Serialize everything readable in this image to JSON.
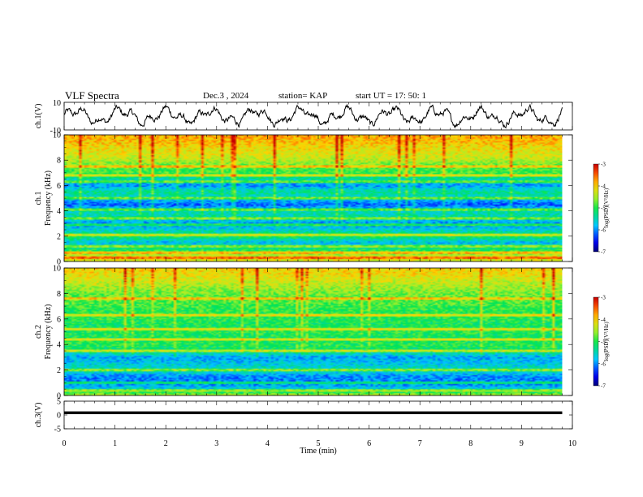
{
  "header": {
    "title": "VLF Spectra",
    "date": "Dec.3 , 2024",
    "station": "station= KAP",
    "start": "start UT =  17: 50: 1"
  },
  "chart_data": [
    {
      "type": "line",
      "panel": "ch1-waveform",
      "ylabel": "ch.1(V)",
      "ylim": [
        -10,
        10
      ],
      "yticks": [
        "10",
        "-10"
      ],
      "xlim": [
        0,
        10
      ],
      "data_end_min": 9.8,
      "description_values": "noisy voltage trace oscillating roughly between -6 and +8 V"
    },
    {
      "type": "heatmap",
      "panel": "ch1-spectrogram",
      "ylabel_top": "ch.1",
      "ylabel": "Frequency (kHz)",
      "ylim": [
        0,
        10
      ],
      "yticks": [
        "0",
        "2",
        "4",
        "6",
        "8",
        "10"
      ],
      "xlim": [
        0,
        10
      ],
      "data_end_min": 9.8,
      "zlim": [
        -7,
        -3
      ],
      "zlabel": "log(PSD)(V²/Hz)",
      "level_profile_khz": [
        [
          0,
          -4.2
        ],
        [
          0.5,
          -4.4
        ],
        [
          1.0,
          -5.2
        ],
        [
          1.5,
          -5.8
        ],
        [
          2.0,
          -5.0
        ],
        [
          2.5,
          -5.6
        ],
        [
          3.0,
          -6.0
        ],
        [
          3.5,
          -5.4
        ],
        [
          4.0,
          -5.5
        ],
        [
          4.5,
          -6.2
        ],
        [
          5.0,
          -5.6
        ],
        [
          5.5,
          -5.3
        ],
        [
          6.0,
          -6.0
        ],
        [
          6.5,
          -5.4
        ],
        [
          7.0,
          -4.9
        ],
        [
          7.5,
          -4.8
        ],
        [
          8.0,
          -4.4
        ],
        [
          8.5,
          -4.2
        ],
        [
          9.0,
          -4.1
        ],
        [
          9.5,
          -3.9
        ],
        [
          10.0,
          -3.8
        ]
      ],
      "line_freqs_khz": [
        0.3,
        0.7,
        1.2,
        2.1,
        2.9,
        3.4,
        4.1,
        5.0,
        6.3,
        6.8,
        7.5
      ]
    },
    {
      "type": "heatmap",
      "panel": "ch2-spectrogram",
      "ylabel_top": "ch.2",
      "ylabel": "Frequency (kHz)",
      "ylim": [
        0,
        10
      ],
      "yticks": [
        "0",
        "2",
        "4",
        "6",
        "8",
        "10"
      ],
      "xlim": [
        0,
        10
      ],
      "data_end_min": 9.8,
      "zlim": [
        -7,
        -3
      ],
      "zlabel": "log(PSD)(V²/Hz)",
      "level_profile_khz": [
        [
          0,
          -4.4
        ],
        [
          0.5,
          -5.6
        ],
        [
          1.0,
          -6.1
        ],
        [
          1.5,
          -6.0
        ],
        [
          2.0,
          -5.4
        ],
        [
          2.5,
          -5.7
        ],
        [
          3.0,
          -5.9
        ],
        [
          3.5,
          -5.2
        ],
        [
          4.0,
          -5.0
        ],
        [
          4.5,
          -5.1
        ],
        [
          5.0,
          -5.0
        ],
        [
          5.5,
          -5.1
        ],
        [
          6.0,
          -5.0
        ],
        [
          6.5,
          -5.0
        ],
        [
          7.0,
          -4.9
        ],
        [
          7.5,
          -4.8
        ],
        [
          8.0,
          -4.7
        ],
        [
          8.5,
          -4.5
        ],
        [
          9.0,
          -4.3
        ],
        [
          9.5,
          -4.1
        ],
        [
          10.0,
          -4.0
        ]
      ],
      "line_freqs_khz": [
        0.4,
        1.0,
        2.0,
        3.5,
        4.4,
        5.2,
        6.3,
        7.6
      ]
    },
    {
      "type": "line",
      "panel": "ch3-waveform",
      "ylabel": "ch.3(V)",
      "ylim": [
        -5,
        5
      ],
      "yticks": [
        "5",
        "0",
        "-5"
      ],
      "xlim": [
        0,
        10
      ],
      "data_end_min": 9.8,
      "level_min": 0.3,
      "level_max": 1.3
    }
  ],
  "x_axis": {
    "label": "Time (min)",
    "ticks": [
      "0",
      "1",
      "2",
      "3",
      "4",
      "5",
      "6",
      "7",
      "8",
      "9",
      "10"
    ]
  },
  "colorbar": {
    "ticks": [
      "-3",
      "-4",
      "-5",
      "-6",
      "-7"
    ],
    "label": "log(PSD)(V²/Hz)"
  }
}
